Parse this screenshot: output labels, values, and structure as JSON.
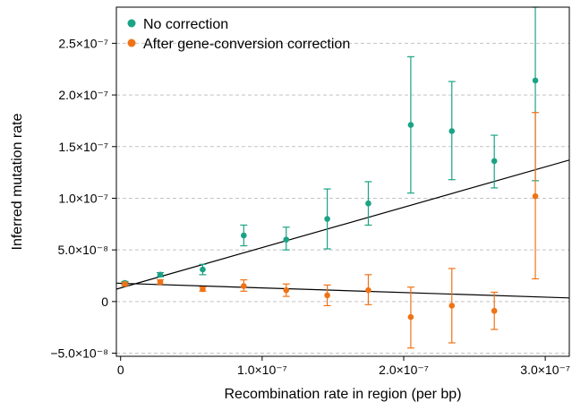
{
  "chart_data": {
    "type": "scatter",
    "xlabel": "Recombination rate in region (per bp)",
    "ylabel": "Inferred mutation rate",
    "xlim": [
      -3e-09,
      3.17e-07
    ],
    "ylim": [
      -5.3e-08,
      2.85e-07
    ],
    "x_ticks": [
      0,
      1e-07,
      2e-07,
      3e-07
    ],
    "x_tick_labels": [
      "0",
      "1.0×10⁻⁷",
      "2.0×10⁻⁷",
      "3.0×10⁻⁷"
    ],
    "y_ticks": [
      -5e-08,
      0,
      5e-08,
      1e-07,
      1.5e-07,
      2e-07,
      2.5e-07
    ],
    "y_tick_labels": [
      "−5.0×10⁻⁸",
      "0",
      "5.0×10⁻⁸",
      "1.0×10⁻⁷",
      "1.5×10⁻⁷",
      "2.0×10⁻⁷",
      "2.5×10⁻⁷"
    ],
    "grid": "horizontal-dashed",
    "legend_position": "top-left",
    "series": [
      {
        "name": "No correction",
        "color": "#1aa385",
        "points": [
          {
            "x": 3e-09,
            "y": 1.8e-08,
            "lo": 1.65e-08,
            "hi": 1.95e-08
          },
          {
            "x": 2.8e-08,
            "y": 2.6e-08,
            "lo": 2.4e-08,
            "hi": 2.8e-08
          },
          {
            "x": 5.8e-08,
            "y": 3.1e-08,
            "lo": 2.6e-08,
            "hi": 3.6e-08
          },
          {
            "x": 8.7e-08,
            "y": 6.4e-08,
            "lo": 5.4e-08,
            "hi": 7.4e-08
          },
          {
            "x": 1.17e-07,
            "y": 6e-08,
            "lo": 5e-08,
            "hi": 7.2e-08
          },
          {
            "x": 1.46e-07,
            "y": 8e-08,
            "lo": 5.1e-08,
            "hi": 1.09e-07
          },
          {
            "x": 1.75e-07,
            "y": 9.5e-08,
            "lo": 7.4e-08,
            "hi": 1.16e-07
          },
          {
            "x": 2.05e-07,
            "y": 1.71e-07,
            "lo": 1.05e-07,
            "hi": 2.37e-07
          },
          {
            "x": 2.34e-07,
            "y": 1.65e-07,
            "lo": 1.18e-07,
            "hi": 2.13e-07
          },
          {
            "x": 2.64e-07,
            "y": 1.36e-07,
            "lo": 1.1e-07,
            "hi": 1.61e-07
          },
          {
            "x": 2.93e-07,
            "y": 2.14e-07,
            "lo": 1.17e-07,
            "hi": 2.85e-07
          }
        ],
        "fit_line": {
          "x": [
            -3e-09,
            3.17e-07
          ],
          "y": [
            1.2e-08,
            1.37e-07
          ]
        }
      },
      {
        "name": "After gene-conversion correction",
        "color": "#f07216",
        "points": [
          {
            "x": 3e-09,
            "y": 1.7e-08,
            "lo": 1.55e-08,
            "hi": 1.85e-08
          },
          {
            "x": 2.8e-08,
            "y": 1.9e-08,
            "lo": 1.7e-08,
            "hi": 2.1e-08
          },
          {
            "x": 5.8e-08,
            "y": 1.2e-08,
            "lo": 1e-08,
            "hi": 1.4e-08
          },
          {
            "x": 8.7e-08,
            "y": 1.5e-08,
            "lo": 1e-08,
            "hi": 2.1e-08
          },
          {
            "x": 1.17e-07,
            "y": 1.1e-08,
            "lo": 5e-09,
            "hi": 1.7e-08
          },
          {
            "x": 1.46e-07,
            "y": 6e-09,
            "lo": -4e-09,
            "hi": 1.6e-08
          },
          {
            "x": 1.75e-07,
            "y": 1.1e-08,
            "lo": -3e-09,
            "hi": 2.6e-08
          },
          {
            "x": 2.05e-07,
            "y": -1.5e-08,
            "lo": -4.5e-08,
            "hi": 1.4e-08
          },
          {
            "x": 2.34e-07,
            "y": -4e-09,
            "lo": -4e-08,
            "hi": 3.2e-08
          },
          {
            "x": 2.64e-07,
            "y": -9e-09,
            "lo": -2.7e-08,
            "hi": 9e-09
          },
          {
            "x": 2.93e-07,
            "y": 1.02e-07,
            "lo": 2.2e-08,
            "hi": 1.83e-07
          }
        ],
        "fit_line": {
          "x": [
            -3e-09,
            3.17e-07
          ],
          "y": [
            1.78e-08,
            3.5e-09
          ]
        }
      }
    ]
  }
}
